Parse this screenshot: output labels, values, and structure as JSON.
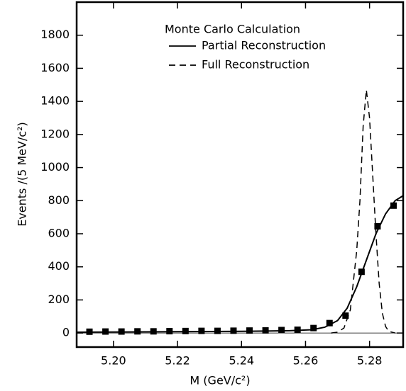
{
  "chart_data": {
    "type": "line",
    "legend_title": "Monte Carlo Calculation",
    "xlabel": "M (GeV/c²)",
    "ylabel": "Events /(5 MeV/c²)",
    "xlim": [
      5.1885,
      5.2905
    ],
    "ylim": [
      -85,
      2000
    ],
    "xticks": [
      {
        "value": 5.2,
        "label": "5.20"
      },
      5.22,
      5.24,
      5.26,
      5.28
    ],
    "yticks": [
      0,
      200,
      400,
      600,
      800,
      1000,
      1200,
      1400,
      1600,
      1800
    ],
    "series": [
      {
        "name": "Partial Reconstruction",
        "color": "#000000",
        "dash": "solid",
        "x": [
          5.1885,
          5.2,
          5.22,
          5.24,
          5.255,
          5.262,
          5.266,
          5.27,
          5.273,
          5.276,
          5.279,
          5.282,
          5.285,
          5.288,
          5.2905
        ],
        "values": [
          5,
          6,
          8,
          10,
          14,
          20,
          35,
          75,
          150,
          280,
          440,
          600,
          720,
          800,
          830
        ]
      },
      {
        "name": "Full Reconstruction",
        "color": "#000000",
        "dash": "dashed",
        "x": [
          5.268,
          5.27,
          5.272,
          5.274,
          5.276,
          5.277,
          5.278,
          5.279,
          5.28,
          5.281,
          5.282,
          5.283,
          5.284,
          5.285,
          5.286,
          5.288
        ],
        "values": [
          0,
          5,
          30,
          140,
          500,
          800,
          1250,
          1470,
          1300,
          950,
          600,
          300,
          120,
          40,
          10,
          0
        ]
      }
    ],
    "points": {
      "color": "#000000",
      "x": [
        5.1925,
        5.1975,
        5.2025,
        5.2075,
        5.2125,
        5.2175,
        5.2225,
        5.2275,
        5.2325,
        5.2375,
        5.2425,
        5.2475,
        5.2525,
        5.2575,
        5.2625,
        5.2675,
        5.2725,
        5.2775,
        5.2825,
        5.2875
      ],
      "values": [
        8,
        9,
        9,
        10,
        10,
        11,
        12,
        13,
        13,
        14,
        15,
        16,
        18,
        20,
        30,
        60,
        105,
        370,
        645,
        770
      ]
    }
  }
}
